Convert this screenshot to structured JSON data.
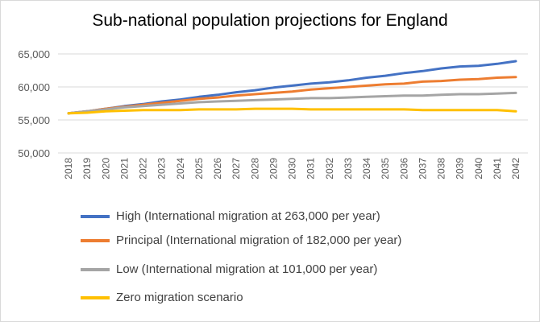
{
  "chart_data": {
    "type": "line",
    "title": "Sub-national population projections for England",
    "xlabel": "",
    "ylabel": "",
    "ylim": [
      50000,
      65000
    ],
    "yticks": [
      "50,000",
      "55,000",
      "60,000",
      "65,000"
    ],
    "ytick_values": [
      50000,
      55000,
      60000,
      65000
    ],
    "grid": true,
    "legend_position": "bottom",
    "categories": [
      "2018",
      "2019",
      "2020",
      "2021",
      "2022",
      "2023",
      "2024",
      "2025",
      "2026",
      "2027",
      "2028",
      "2029",
      "2030",
      "2031",
      "2032",
      "2033",
      "2034",
      "2035",
      "2036",
      "2037",
      "2038",
      "2039",
      "2040",
      "2041",
      "2042"
    ],
    "series": [
      {
        "name": "High (International migration at 263,000 per year)",
        "color": "#4472C4",
        "values": [
          56000,
          56300,
          56700,
          57100,
          57400,
          57800,
          58100,
          58500,
          58800,
          59200,
          59500,
          59900,
          60200,
          60500,
          60700,
          61000,
          61400,
          61700,
          62100,
          62400,
          62800,
          63100,
          63200,
          63500,
          63900
        ]
      },
      {
        "name": "Principal (International migration of 182,000 per year)",
        "color": "#ED7D31",
        "values": [
          56000,
          56300,
          56700,
          57000,
          57300,
          57600,
          57900,
          58200,
          58400,
          58700,
          58900,
          59100,
          59300,
          59600,
          59800,
          60000,
          60200,
          60400,
          60500,
          60800,
          60900,
          61100,
          61200,
          61400,
          61500
        ]
      },
      {
        "name": "Low (International migration at 101,000 per year)",
        "color": "#A5A5A5",
        "values": [
          56000,
          56300,
          56600,
          56900,
          57100,
          57300,
          57500,
          57700,
          57800,
          57900,
          58000,
          58100,
          58200,
          58300,
          58300,
          58400,
          58500,
          58600,
          58700,
          58700,
          58800,
          58900,
          58900,
          59000,
          59100
        ]
      },
      {
        "name": "Zero migration scenario",
        "color": "#FFC000",
        "values": [
          56000,
          56100,
          56300,
          56400,
          56500,
          56500,
          56500,
          56600,
          56600,
          56600,
          56700,
          56700,
          56700,
          56600,
          56600,
          56600,
          56600,
          56600,
          56600,
          56500,
          56500,
          56500,
          56500,
          56500,
          56300
        ]
      }
    ]
  }
}
